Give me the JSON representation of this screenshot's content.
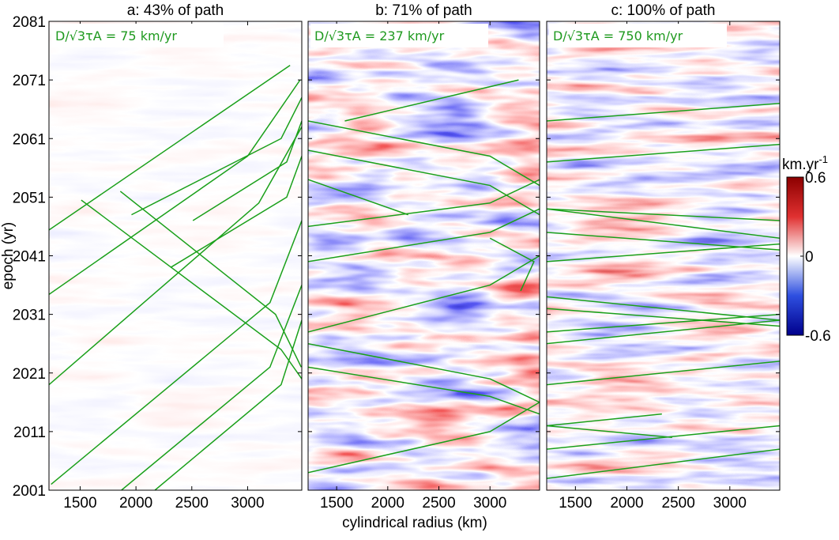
{
  "chart_data": [
    {
      "type": "heatmap",
      "title": "a: 43% of path",
      "annotation": "D/√3τA = 75 km/yr",
      "ylabel": "epoch (yr)",
      "xlim": [
        1221,
        3485
      ],
      "xticks": [
        1500,
        2000,
        2500,
        3000
      ],
      "ylim": [
        2001,
        2081
      ],
      "yticks": [
        2001,
        2011,
        2021,
        2031,
        2041,
        2051,
        2061,
        2071,
        2081
      ],
      "ray_color": "#1aa01a",
      "rays": [
        {
          "x": [
            1221,
            3380
          ],
          "y": [
            2045.4,
            2073.5
          ]
        },
        {
          "x": [
            1221,
            3000,
            3470
          ],
          "y": [
            2034.4,
            2058,
            2071
          ]
        },
        {
          "x": [
            1221,
            3100,
            3485
          ],
          "y": [
            2019,
            2050,
            2063
          ]
        },
        {
          "x": [
            1240,
            3200,
            3485
          ],
          "y": [
            2002,
            2033,
            2047
          ]
        },
        {
          "x": [
            1870,
            3200,
            3485
          ],
          "y": [
            2001,
            2022,
            2036
          ]
        },
        {
          "x": [
            2170,
            3300,
            3485
          ],
          "y": [
            2001,
            2019,
            2030
          ]
        },
        {
          "x": [
            1960,
            3300,
            3485
          ],
          "y": [
            2048,
            2061,
            2068
          ]
        },
        {
          "x": [
            2510,
            3350,
            3485
          ],
          "y": [
            2047,
            2057,
            2064
          ]
        },
        {
          "x": [
            2310,
            3350,
            3485
          ],
          "y": [
            2039,
            2051,
            2058
          ]
        },
        {
          "x": [
            1510,
            3300,
            3485
          ],
          "y": [
            2050.5,
            2025,
            2020
          ]
        },
        {
          "x": [
            1860,
            3250,
            3480
          ],
          "y": [
            2052,
            2031,
            2022
          ]
        }
      ]
    },
    {
      "type": "heatmap",
      "title": "b: 71% of path",
      "annotation": "D/√3τA = 237 km/yr",
      "xlabel": "cylindrical radius (km)",
      "xlim": [
        1221,
        3485
      ],
      "xticks": [
        1500,
        2000,
        2500,
        3000
      ],
      "ylim": [
        2001,
        2081
      ],
      "yticks": [
        2001,
        2011,
        2021,
        2031,
        2041,
        2051,
        2061,
        2071,
        2081
      ],
      "ray_color": "#1aa01a",
      "rays": [
        {
          "x": [
            1580,
            3280
          ],
          "y": [
            2064,
            2071
          ]
        },
        {
          "x": [
            1221,
            3000,
            3485
          ],
          "y": [
            2064,
            2058,
            2053
          ]
        },
        {
          "x": [
            1221,
            3000,
            3485
          ],
          "y": [
            2059,
            2053,
            2048
          ]
        },
        {
          "x": [
            1221,
            2200
          ],
          "y": [
            2054,
            2048
          ]
        },
        {
          "x": [
            1221,
            3000,
            3485
          ],
          "y": [
            2046,
            2050,
            2054
          ]
        },
        {
          "x": [
            1221,
            3000,
            3485
          ],
          "y": [
            2040,
            2045,
            2049
          ]
        },
        {
          "x": [
            3000,
            3430,
            3300
          ],
          "y": [
            2044,
            2040,
            2035
          ]
        },
        {
          "x": [
            1221,
            3000,
            3485
          ],
          "y": [
            2028,
            2036,
            2041
          ]
        },
        {
          "x": [
            1221,
            3000,
            3485
          ],
          "y": [
            2026,
            2020,
            2016
          ]
        },
        {
          "x": [
            1221,
            3000,
            3485
          ],
          "y": [
            2004,
            2011,
            2016
          ]
        },
        {
          "x": [
            1221,
            3000,
            3485
          ],
          "y": [
            2022,
            2017,
            2014
          ]
        }
      ]
    },
    {
      "type": "heatmap",
      "title": "c: 100% of path",
      "annotation": "D/√3τA = 750 km/yr",
      "xlim": [
        1221,
        3485
      ],
      "xticks": [
        1500,
        2000,
        2500,
        3000
      ],
      "ylim": [
        2001,
        2081
      ],
      "yticks": [
        2001,
        2011,
        2021,
        2031,
        2041,
        2051,
        2061,
        2071,
        2081
      ],
      "ray_color": "#1aa01a",
      "rays": [
        {
          "x": [
            1221,
            3485
          ],
          "y": [
            2064,
            2067
          ]
        },
        {
          "x": [
            1221,
            3485
          ],
          "y": [
            2057,
            2060
          ]
        },
        {
          "x": [
            1221,
            3485
          ],
          "y": [
            2049,
            2047
          ]
        },
        {
          "x": [
            1221,
            3485
          ],
          "y": [
            2049,
            2044
          ]
        },
        {
          "x": [
            1221,
            3485
          ],
          "y": [
            2045,
            2042
          ]
        },
        {
          "x": [
            1221,
            3485
          ],
          "y": [
            2040,
            2043
          ]
        },
        {
          "x": [
            1221,
            3485
          ],
          "y": [
            2034,
            2030
          ]
        },
        {
          "x": [
            1221,
            3485
          ],
          "y": [
            2032,
            2029
          ]
        },
        {
          "x": [
            1221,
            3485
          ],
          "y": [
            2028,
            2031
          ]
        },
        {
          "x": [
            1221,
            3485
          ],
          "y": [
            2026,
            2030
          ]
        },
        {
          "x": [
            1221,
            3485
          ],
          "y": [
            2019,
            2023
          ]
        },
        {
          "x": [
            1221,
            2340
          ],
          "y": [
            2012,
            2014
          ]
        },
        {
          "x": [
            1221,
            2440
          ],
          "y": [
            2012,
            2010
          ]
        },
        {
          "x": [
            1221,
            3485
          ],
          "y": [
            2008,
            2012
          ]
        },
        {
          "x": [
            1221,
            3485
          ],
          "y": [
            2003,
            2008
          ]
        }
      ],
      "colorbar": {
        "label": "km.yr",
        "label_exp": "-1",
        "lim": [
          -0.6,
          0.6
        ],
        "ticks": [
          0.6,
          0,
          -0.6
        ]
      }
    }
  ]
}
